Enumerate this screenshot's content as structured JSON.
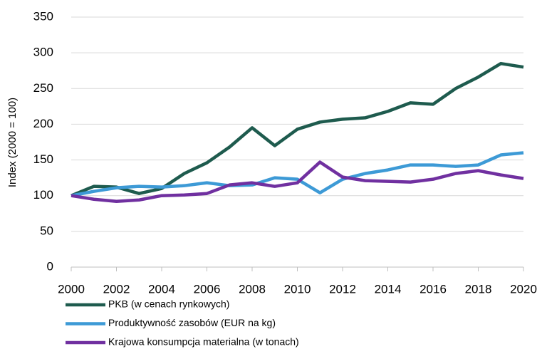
{
  "chart_data": {
    "type": "line",
    "ylabel": "Index (2000 = 100)",
    "x": [
      2000,
      2001,
      2002,
      2003,
      2004,
      2005,
      2006,
      2007,
      2008,
      2009,
      2010,
      2011,
      2012,
      2013,
      2014,
      2015,
      2016,
      2017,
      2018,
      2019,
      2020
    ],
    "series": [
      {
        "name": "PKB (w cenach rynkowych)",
        "color": "#1e5b4e",
        "values": [
          100,
          113,
          112,
          103,
          110,
          131,
          146,
          168,
          195,
          170,
          193,
          203,
          207,
          209,
          218,
          230,
          228,
          250,
          266,
          285,
          280
        ]
      },
      {
        "name": "Produktywność zasobów (EUR na kg)",
        "color": "#3d9ad6",
        "values": [
          100,
          106,
          111,
          113,
          112,
          114,
          118,
          114,
          115,
          125,
          123,
          104,
          123,
          131,
          136,
          143,
          143,
          141,
          143,
          157,
          160
        ]
      },
      {
        "name": "Krajowa konsumpcja materialna (w tonach)",
        "color": "#7030a0",
        "values": [
          100,
          95,
          92,
          94,
          100,
          101,
          103,
          115,
          118,
          113,
          118,
          147,
          126,
          121,
          120,
          119,
          123,
          131,
          135,
          129,
          124
        ]
      }
    ],
    "xlim": [
      2000,
      2020
    ],
    "xticks": [
      2000,
      2002,
      2004,
      2006,
      2008,
      2010,
      2012,
      2014,
      2016,
      2018,
      2020
    ],
    "ylim": [
      0,
      350
    ],
    "yticks": [
      0,
      50,
      100,
      150,
      200,
      250,
      300,
      350
    ],
    "grid": true
  }
}
